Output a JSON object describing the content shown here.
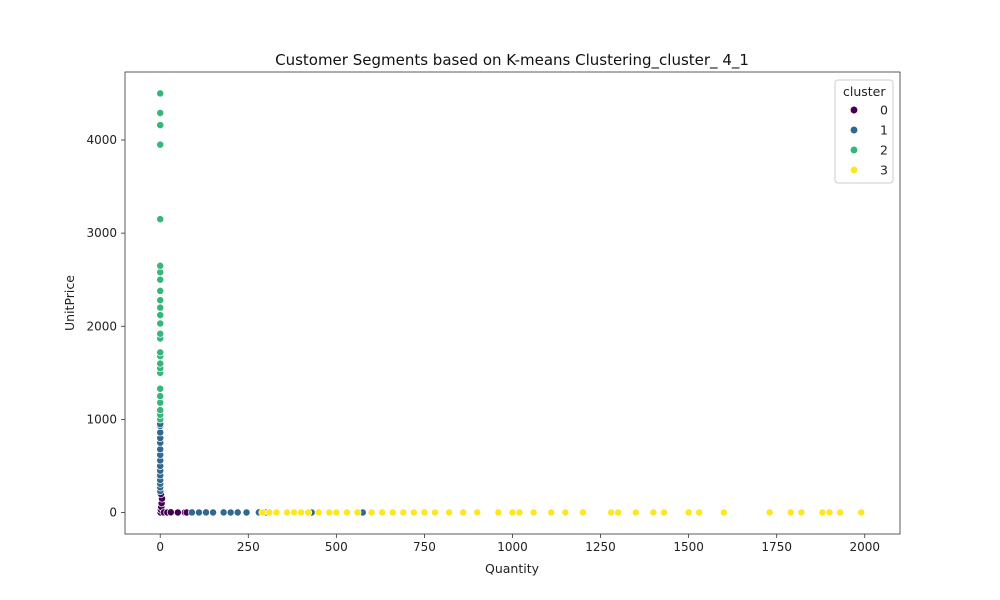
{
  "chart_data": {
    "type": "scatter",
    "title": "Customer Segments based on K-means Clustering_cluster_ 4_1",
    "xlabel": "Quantity",
    "ylabel": "UnitPrice",
    "xlim": [
      -100,
      2100
    ],
    "ylim": [
      -230,
      4730
    ],
    "xticks": [
      0,
      250,
      500,
      750,
      1000,
      1250,
      1500,
      1750,
      2000
    ],
    "yticks": [
      0,
      1000,
      2000,
      3000,
      4000
    ],
    "grid": false,
    "legend": {
      "title": "cluster",
      "placement": "top-right"
    },
    "series": [
      {
        "name": "0",
        "color": "#440154",
        "points": [
          [
            1,
            1
          ],
          [
            2,
            30
          ],
          [
            3,
            60
          ],
          [
            4,
            100
          ],
          [
            5,
            150
          ],
          [
            2,
            200
          ],
          [
            10,
            2
          ],
          [
            20,
            1
          ],
          [
            30,
            3
          ],
          [
            50,
            1
          ],
          [
            70,
            2
          ],
          [
            75,
            1
          ]
        ]
      },
      {
        "name": "1",
        "color": "#31688e",
        "points": [
          [
            0,
            230
          ],
          [
            0,
            270
          ],
          [
            0,
            310
          ],
          [
            0,
            350
          ],
          [
            0,
            400
          ],
          [
            0,
            450
          ],
          [
            0,
            500
          ],
          [
            0,
            560
          ],
          [
            0,
            620
          ],
          [
            0,
            680
          ],
          [
            0,
            750
          ],
          [
            0,
            800
          ],
          [
            0,
            860
          ],
          [
            0,
            930
          ],
          [
            0,
            950
          ],
          [
            90,
            2
          ],
          [
            110,
            1
          ],
          [
            130,
            2
          ],
          [
            150,
            1
          ],
          [
            180,
            2
          ],
          [
            200,
            1
          ],
          [
            220,
            2
          ],
          [
            245,
            1
          ],
          [
            280,
            2
          ],
          [
            300,
            1
          ],
          [
            360,
            1
          ],
          [
            430,
            1
          ],
          [
            480,
            2
          ],
          [
            575,
            1
          ]
        ]
      },
      {
        "name": "2",
        "color": "#35b779",
        "points": [
          [
            0,
            1000
          ],
          [
            0,
            1050
          ],
          [
            0,
            1100
          ],
          [
            0,
            1180
          ],
          [
            0,
            1250
          ],
          [
            0,
            1330
          ],
          [
            0,
            1500
          ],
          [
            0,
            1550
          ],
          [
            0,
            1600
          ],
          [
            0,
            1680
          ],
          [
            0,
            1720
          ],
          [
            0,
            1870
          ],
          [
            0,
            1920
          ],
          [
            0,
            2030
          ],
          [
            0,
            2120
          ],
          [
            0,
            2200
          ],
          [
            0,
            2280
          ],
          [
            0,
            2380
          ],
          [
            0,
            2500
          ],
          [
            0,
            2580
          ],
          [
            0,
            2650
          ],
          [
            0,
            3150
          ],
          [
            0,
            3950
          ],
          [
            0,
            4160
          ],
          [
            0,
            4290
          ],
          [
            0,
            4500
          ]
        ]
      },
      {
        "name": "3",
        "color": "#fde725",
        "points": [
          [
            290,
            1
          ],
          [
            310,
            2
          ],
          [
            330,
            1
          ],
          [
            360,
            1
          ],
          [
            380,
            2
          ],
          [
            400,
            1
          ],
          [
            420,
            1
          ],
          [
            450,
            2
          ],
          [
            480,
            1
          ],
          [
            500,
            1
          ],
          [
            530,
            2
          ],
          [
            560,
            1
          ],
          [
            600,
            1
          ],
          [
            630,
            2
          ],
          [
            660,
            1
          ],
          [
            690,
            1
          ],
          [
            720,
            1
          ],
          [
            750,
            2
          ],
          [
            780,
            1
          ],
          [
            820,
            1
          ],
          [
            860,
            1
          ],
          [
            900,
            2
          ],
          [
            960,
            1
          ],
          [
            1000,
            1
          ],
          [
            1020,
            2
          ],
          [
            1060,
            1
          ],
          [
            1110,
            1
          ],
          [
            1150,
            1
          ],
          [
            1200,
            2
          ],
          [
            1280,
            1
          ],
          [
            1300,
            1
          ],
          [
            1350,
            1
          ],
          [
            1400,
            2
          ],
          [
            1430,
            1
          ],
          [
            1500,
            1
          ],
          [
            1530,
            1
          ],
          [
            1600,
            1
          ],
          [
            1730,
            1
          ],
          [
            1790,
            1
          ],
          [
            1820,
            1
          ],
          [
            1880,
            1
          ],
          [
            1900,
            2
          ],
          [
            1930,
            1
          ],
          [
            1990,
            1
          ]
        ]
      }
    ]
  }
}
